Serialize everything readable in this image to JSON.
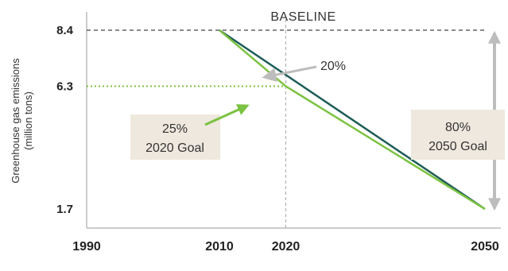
{
  "chart_data": {
    "type": "line",
    "ylabel": "Greenhouse gas emissions",
    "ylabel_unit": "(million tons)",
    "x_ticks": [
      "1990",
      "2010",
      "2020",
      "2050"
    ],
    "y_ticks": [
      "1.7",
      "6.3",
      "8.4"
    ],
    "xlim": [
      1990,
      2050
    ],
    "ylim": [
      1.7,
      8.4
    ],
    "series": [
      {
        "color": "#1d5c57",
        "x": [
          2010,
          2050
        ],
        "y": [
          8.4,
          1.7
        ]
      },
      {
        "color": "#7cc242",
        "x": [
          2010,
          2020,
          2050
        ],
        "y": [
          8.4,
          6.3,
          1.7
        ]
      }
    ],
    "baseline": {
      "label": "BASELINE",
      "value": 8.4
    },
    "reference_2020": {
      "x": 2020,
      "value": 6.3
    },
    "annotations": {
      "reduction_2020": {
        "text": "20%"
      },
      "goal_2020": {
        "percent": "25%",
        "label": "2020 Goal"
      },
      "goal_2050": {
        "percent": "80%",
        "label": "2050 Goal"
      }
    },
    "grid": false,
    "legend": "none"
  },
  "colors": {
    "dark_line": "#1d5c57",
    "green_line": "#7cc242",
    "box_fill": "#efe8de",
    "arrow_gray": "#bdbdbd",
    "dashed": "#444444"
  }
}
